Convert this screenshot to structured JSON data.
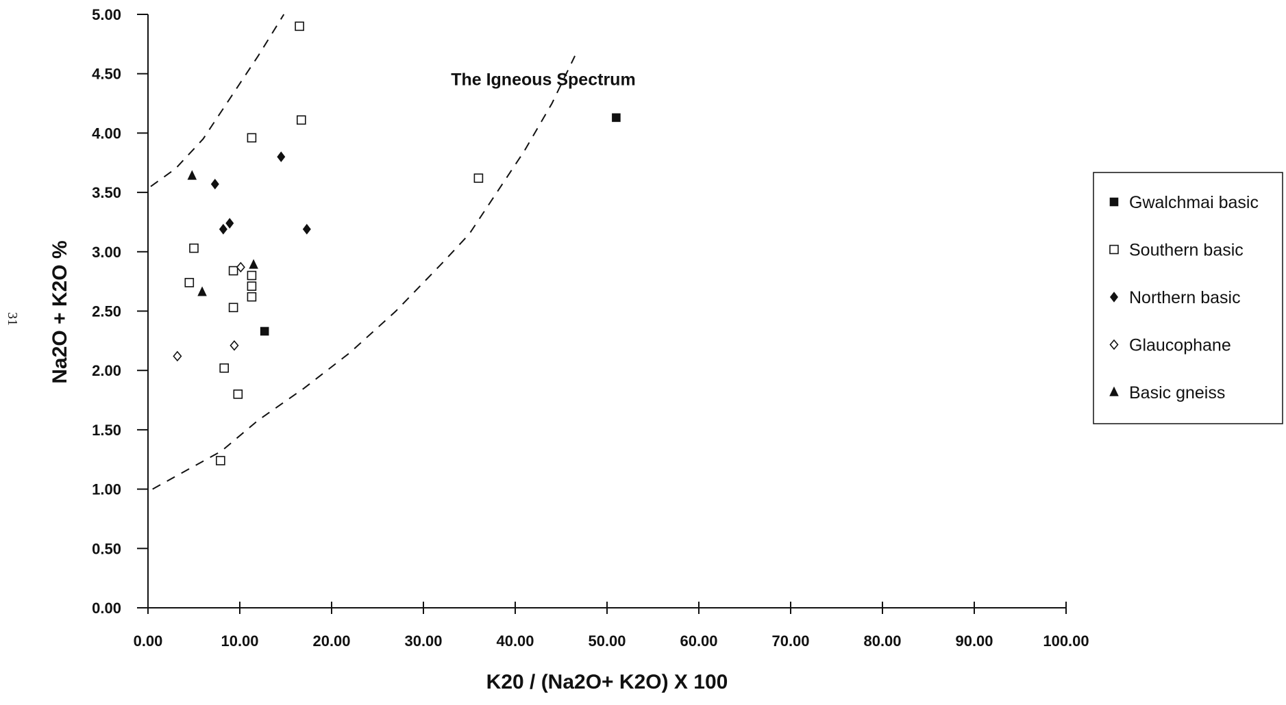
{
  "page_number": "31",
  "chart_data": {
    "type": "scatter",
    "title": "",
    "xlabel": "K20 / (Na2O+ K2O) X 100",
    "ylabel": "Na2O + K2O %",
    "xlim": [
      0,
      100
    ],
    "ylim": [
      0,
      5
    ],
    "x_ticks": [
      "0.00",
      "10.00",
      "20.00",
      "30.00",
      "40.00",
      "50.00",
      "60.00",
      "70.00",
      "80.00",
      "90.00",
      "100.00"
    ],
    "y_ticks": [
      "0.00",
      "0.50",
      "1.00",
      "1.50",
      "2.00",
      "2.50",
      "3.00",
      "3.50",
      "4.00",
      "4.50",
      "5.00"
    ],
    "grid": false,
    "legend_position": "right",
    "annotations": [
      {
        "text": "The Igneous Spectrum",
        "x": 33,
        "y": 4.45
      }
    ],
    "boundary_lines": [
      {
        "style": "dashed",
        "points": [
          [
            0.3,
            3.55
          ],
          [
            3,
            3.7
          ],
          [
            6,
            3.95
          ],
          [
            9,
            4.3
          ],
          [
            12,
            4.65
          ],
          [
            14.8,
            5.0
          ]
        ]
      },
      {
        "style": "dashed",
        "points": [
          [
            0.5,
            1.0
          ],
          [
            4,
            1.15
          ],
          [
            8,
            1.32
          ],
          [
            12,
            1.58
          ],
          [
            17,
            1.85
          ],
          [
            22,
            2.15
          ],
          [
            27,
            2.5
          ],
          [
            32,
            2.9
          ],
          [
            35,
            3.15
          ],
          [
            38,
            3.5
          ],
          [
            41,
            3.85
          ],
          [
            44,
            4.25
          ],
          [
            46.5,
            4.65
          ]
        ]
      }
    ],
    "series": [
      {
        "name": "Gwalchmai basic",
        "marker": "square-filled",
        "points": [
          [
            12.7,
            2.33
          ],
          [
            51.0,
            4.13
          ]
        ]
      },
      {
        "name": "Southern basic",
        "marker": "square-open",
        "points": [
          [
            16.5,
            4.9
          ],
          [
            16.7,
            4.11
          ],
          [
            11.3,
            3.96
          ],
          [
            36.0,
            3.62
          ],
          [
            5.0,
            3.03
          ],
          [
            4.5,
            2.74
          ],
          [
            9.3,
            2.84
          ],
          [
            11.3,
            2.8
          ],
          [
            11.3,
            2.71
          ],
          [
            11.3,
            2.62
          ],
          [
            9.3,
            2.53
          ],
          [
            8.3,
            2.02
          ],
          [
            9.8,
            1.8
          ],
          [
            7.9,
            1.24
          ]
        ]
      },
      {
        "name": "Northern basic",
        "marker": "diamond-filled",
        "points": [
          [
            14.5,
            3.8
          ],
          [
            7.3,
            3.57
          ],
          [
            8.9,
            3.24
          ],
          [
            8.2,
            3.19
          ],
          [
            17.3,
            3.19
          ]
        ]
      },
      {
        "name": "Glaucophane",
        "marker": "diamond-open",
        "points": [
          [
            10.1,
            2.87
          ],
          [
            9.4,
            2.21
          ],
          [
            3.2,
            2.12
          ]
        ]
      },
      {
        "name": "Basic gneiss",
        "marker": "triangle-filled",
        "points": [
          [
            4.8,
            3.64
          ],
          [
            11.5,
            2.89
          ],
          [
            5.9,
            2.66
          ]
        ]
      }
    ]
  }
}
